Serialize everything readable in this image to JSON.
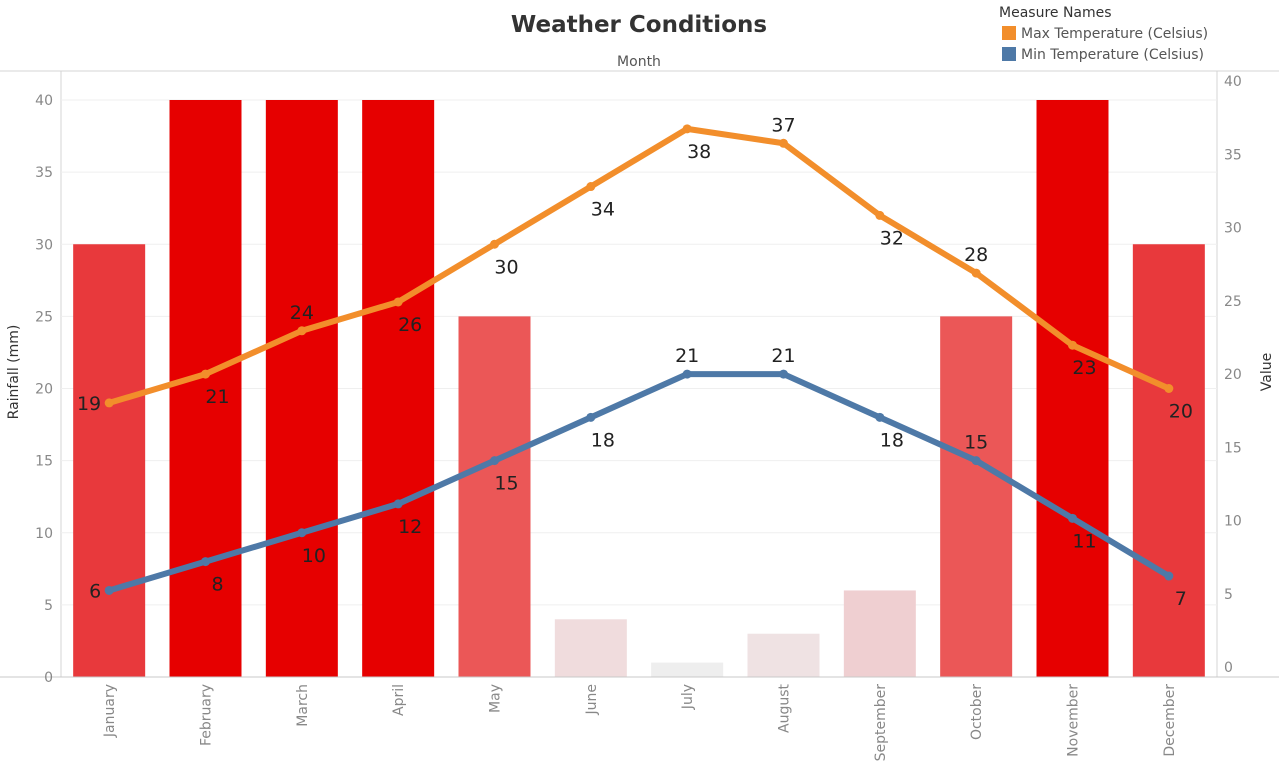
{
  "chart_data": {
    "type": "bar+line",
    "title": "Weather Conditions",
    "column_header": "Month",
    "categories": [
      "January",
      "February",
      "March",
      "April",
      "May",
      "June",
      "July",
      "August",
      "September",
      "October",
      "November",
      "December"
    ],
    "bars": {
      "name": "Rainfall (mm)",
      "values": [
        30,
        40,
        40,
        40,
        25,
        4,
        1,
        3,
        6,
        25,
        40,
        30
      ],
      "colors": [
        "#e8393c",
        "#e60000",
        "#e60000",
        "#e60000",
        "#eb5757",
        "#f0dcdd",
        "#eeeeee",
        "#efe2e3",
        "#efcfd1",
        "#eb5757",
        "#e60000",
        "#e8393c"
      ]
    },
    "series": [
      {
        "name": "Max Temperature (Celsius)",
        "color": "#f28e2b",
        "values": [
          19,
          21,
          24,
          26,
          30,
          34,
          38,
          37,
          32,
          28,
          23,
          20
        ],
        "label_pos": [
          "left",
          "below",
          "above",
          "below",
          "below",
          "below",
          "below",
          "above",
          "below",
          "above",
          "below",
          "below"
        ]
      },
      {
        "name": "Min Temperature (Celsius)",
        "color": "#4e79a7",
        "values": [
          6,
          8,
          10,
          12,
          15,
          18,
          21,
          21,
          18,
          15,
          11,
          7
        ],
        "label_pos": [
          "left",
          "below",
          "below",
          "below",
          "below",
          "below",
          "above",
          "above",
          "below",
          "above",
          "below",
          "below"
        ]
      }
    ],
    "ylabel_left": "Rainfall (mm)",
    "ylabel_right": "Value",
    "ylim_left": [
      0,
      40
    ],
    "ylim_right": [
      0,
      40
    ],
    "yticks_left": [
      "0",
      "5",
      "10",
      "15",
      "20",
      "25",
      "30",
      "35",
      "40"
    ],
    "yticks_right": [
      "0",
      "5",
      "10",
      "15",
      "20",
      "25",
      "30",
      "35",
      "40"
    ],
    "grid": true,
    "legend": {
      "title": "Measure Names",
      "placement": "top-right",
      "entries": [
        "Max Temperature (Celsius)",
        "Min Temperature (Celsius)"
      ]
    }
  }
}
